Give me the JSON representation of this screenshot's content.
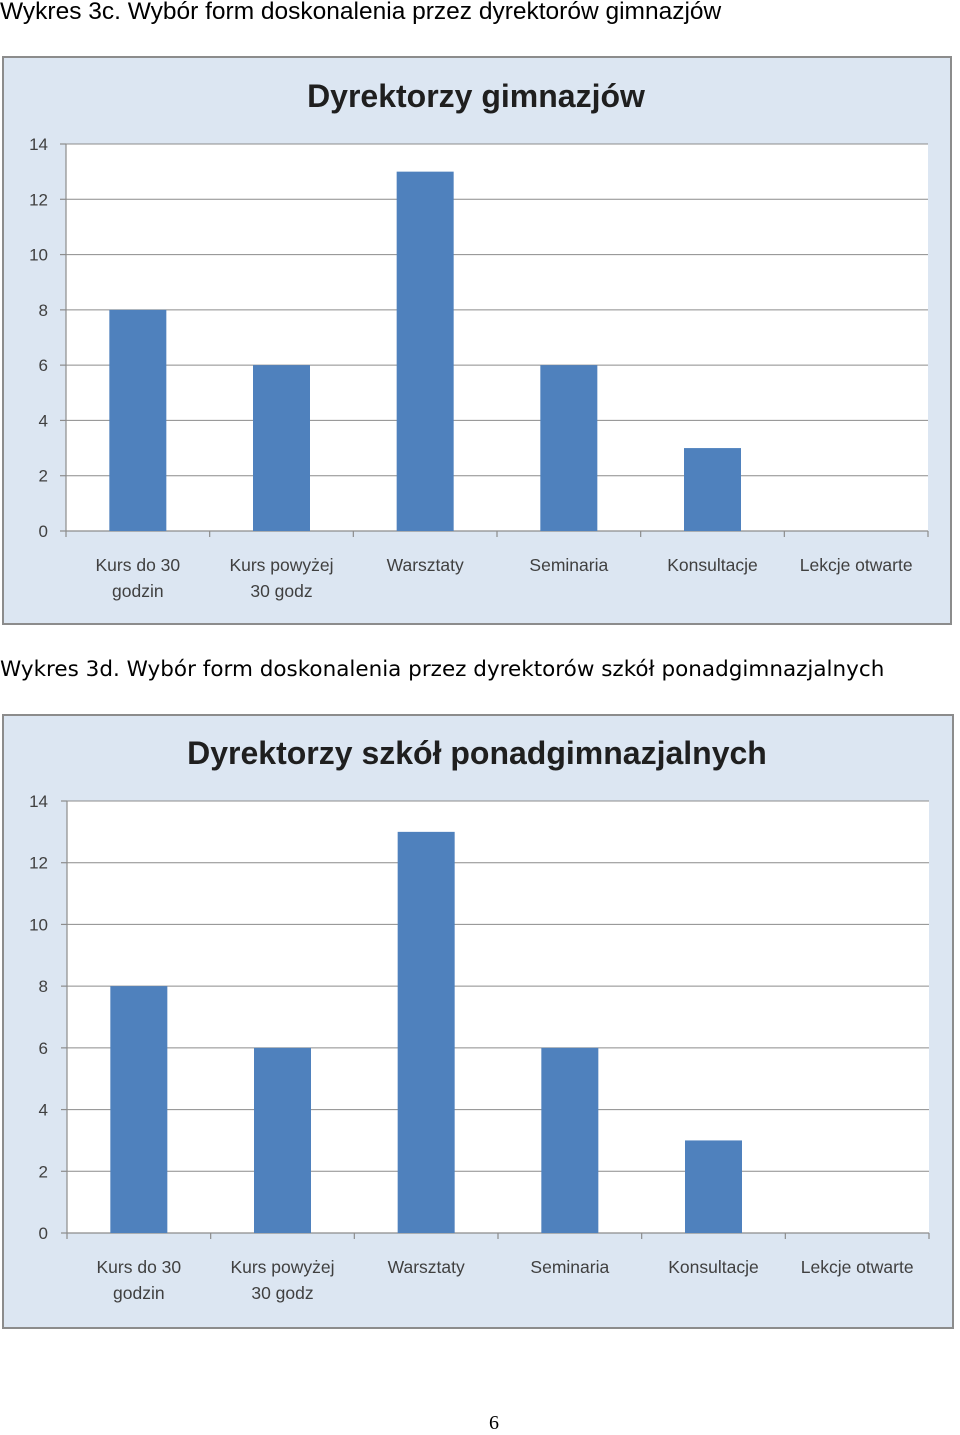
{
  "captions": {
    "chart1": "Wykres 3c. Wybór form doskonalenia przez dyrektorów gimnazjów",
    "chart2": "Wykres 3d. Wybór form doskonalenia przez dyrektorów szkół ponadgimnazjalnych"
  },
  "page_number": "6",
  "colors": {
    "bar": "#4f81bd",
    "frame": "#dce6f2"
  },
  "chart_data": [
    {
      "type": "bar",
      "title": "Dyrektorzy gimnazjów",
      "categories": [
        [
          "Kurs do 30",
          "godzin"
        ],
        [
          "Kurs powyżej",
          "30 godz"
        ],
        [
          "Warsztaty"
        ],
        [
          "Seminaria"
        ],
        [
          "Konsultacje"
        ],
        [
          "Lekcje otwarte"
        ]
      ],
      "values": [
        8,
        6,
        13,
        6,
        3,
        0
      ],
      "ylim": [
        0,
        14
      ],
      "yticks": [
        0,
        2,
        4,
        6,
        8,
        10,
        12,
        14
      ],
      "grid": true,
      "legend": "none"
    },
    {
      "type": "bar",
      "title": "Dyrektorzy szkół ponadgimnazjalnych",
      "categories": [
        [
          "Kurs do 30",
          "godzin"
        ],
        [
          "Kurs powyżej",
          "30 godz"
        ],
        [
          "Warsztaty"
        ],
        [
          "Seminaria"
        ],
        [
          "Konsultacje"
        ],
        [
          "Lekcje otwarte"
        ]
      ],
      "values": [
        8,
        6,
        13,
        6,
        3,
        0
      ],
      "ylim": [
        0,
        14
      ],
      "yticks": [
        0,
        2,
        4,
        6,
        8,
        10,
        12,
        14
      ],
      "grid": true,
      "legend": "none"
    }
  ]
}
